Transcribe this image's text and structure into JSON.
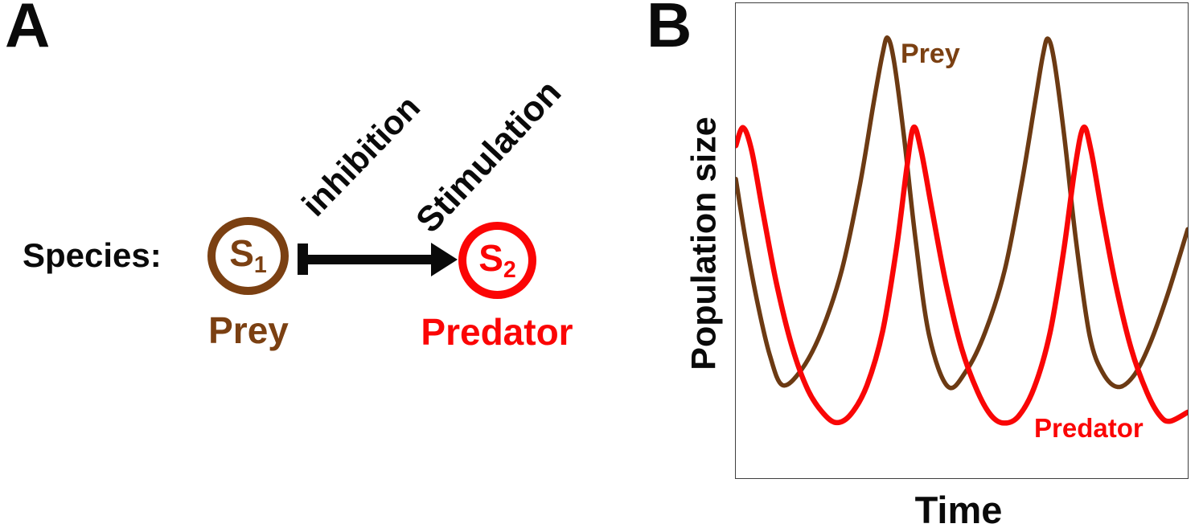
{
  "panel_a": {
    "label": "A",
    "species_label": "Species:",
    "inhibition_label": "inhibition",
    "stimulation_label": "Stimulation",
    "s1": {
      "symbol": "S",
      "subscript": "1",
      "name": "Prey"
    },
    "s2": {
      "symbol": "S",
      "subscript": "2",
      "name": "Predator"
    }
  },
  "panel_b": {
    "label": "B",
    "ylabel": "Population size",
    "xlabel": "Time",
    "prey_label": "Prey",
    "predator_label": "Predator"
  },
  "colors": {
    "prey_brown": "#7B4012",
    "prey_curve": "#6C3A13",
    "predator_red": "#FB0505",
    "predator_curve": "#F90606",
    "ink": "#0A0A0A",
    "box_border": "#3F3F3F"
  },
  "chart_data": {
    "type": "line",
    "title": "",
    "xlabel": "Time",
    "ylabel": "Population size",
    "x_range": [
      0,
      1
    ],
    "y_range": [
      0,
      1
    ],
    "grid": false,
    "axis_ticks": "none (qualitative sketch)",
    "legend": "inline curve labels",
    "series": [
      {
        "name": "Prey",
        "color_key": "prey_curve",
        "stroke_width": 5.5,
        "points": [
          [
            0.0,
            0.63
          ],
          [
            0.022,
            0.5
          ],
          [
            0.05,
            0.36
          ],
          [
            0.075,
            0.26
          ],
          [
            0.103,
            0.196
          ],
          [
            0.145,
            0.228
          ],
          [
            0.19,
            0.31
          ],
          [
            0.235,
            0.44
          ],
          [
            0.275,
            0.62
          ],
          [
            0.305,
            0.79
          ],
          [
            0.325,
            0.895
          ],
          [
            0.336,
            0.927
          ],
          [
            0.35,
            0.878
          ],
          [
            0.372,
            0.72
          ],
          [
            0.398,
            0.5
          ],
          [
            0.428,
            0.3
          ],
          [
            0.469,
            0.193
          ],
          [
            0.51,
            0.226
          ],
          [
            0.552,
            0.308
          ],
          [
            0.595,
            0.438
          ],
          [
            0.632,
            0.618
          ],
          [
            0.662,
            0.79
          ],
          [
            0.68,
            0.893
          ],
          [
            0.691,
            0.925
          ],
          [
            0.705,
            0.876
          ],
          [
            0.727,
            0.718
          ],
          [
            0.753,
            0.498
          ],
          [
            0.783,
            0.3
          ],
          [
            0.812,
            0.222
          ],
          [
            0.845,
            0.192
          ],
          [
            0.88,
            0.215
          ],
          [
            0.915,
            0.28
          ],
          [
            0.955,
            0.385
          ],
          [
            1.0,
            0.524
          ]
        ]
      },
      {
        "name": "Predator",
        "color_key": "predator_curve",
        "stroke_width": 6.5,
        "points": [
          [
            0.0,
            0.7
          ],
          [
            0.016,
            0.738
          ],
          [
            0.035,
            0.69
          ],
          [
            0.06,
            0.56
          ],
          [
            0.09,
            0.41
          ],
          [
            0.125,
            0.275
          ],
          [
            0.16,
            0.185
          ],
          [
            0.195,
            0.135
          ],
          [
            0.224,
            0.117
          ],
          [
            0.255,
            0.135
          ],
          [
            0.29,
            0.195
          ],
          [
            0.325,
            0.31
          ],
          [
            0.355,
            0.48
          ],
          [
            0.378,
            0.65
          ],
          [
            0.393,
            0.738
          ],
          [
            0.41,
            0.69
          ],
          [
            0.435,
            0.56
          ],
          [
            0.465,
            0.41
          ],
          [
            0.5,
            0.272
          ],
          [
            0.535,
            0.182
          ],
          [
            0.565,
            0.132
          ],
          [
            0.593,
            0.116
          ],
          [
            0.625,
            0.13
          ],
          [
            0.66,
            0.19
          ],
          [
            0.695,
            0.305
          ],
          [
            0.725,
            0.475
          ],
          [
            0.75,
            0.65
          ],
          [
            0.769,
            0.738
          ],
          [
            0.786,
            0.69
          ],
          [
            0.81,
            0.56
          ],
          [
            0.84,
            0.41
          ],
          [
            0.875,
            0.272
          ],
          [
            0.91,
            0.18
          ],
          [
            0.938,
            0.132
          ],
          [
            0.961,
            0.12
          ],
          [
            1.0,
            0.139
          ]
        ]
      }
    ],
    "annotations": [
      {
        "text": "Prey",
        "color_key": "prey_brown",
        "x": 0.37,
        "y": 0.93
      },
      {
        "text": "Predator",
        "color_key": "predator_red",
        "x": 0.66,
        "y": 0.1
      }
    ]
  }
}
